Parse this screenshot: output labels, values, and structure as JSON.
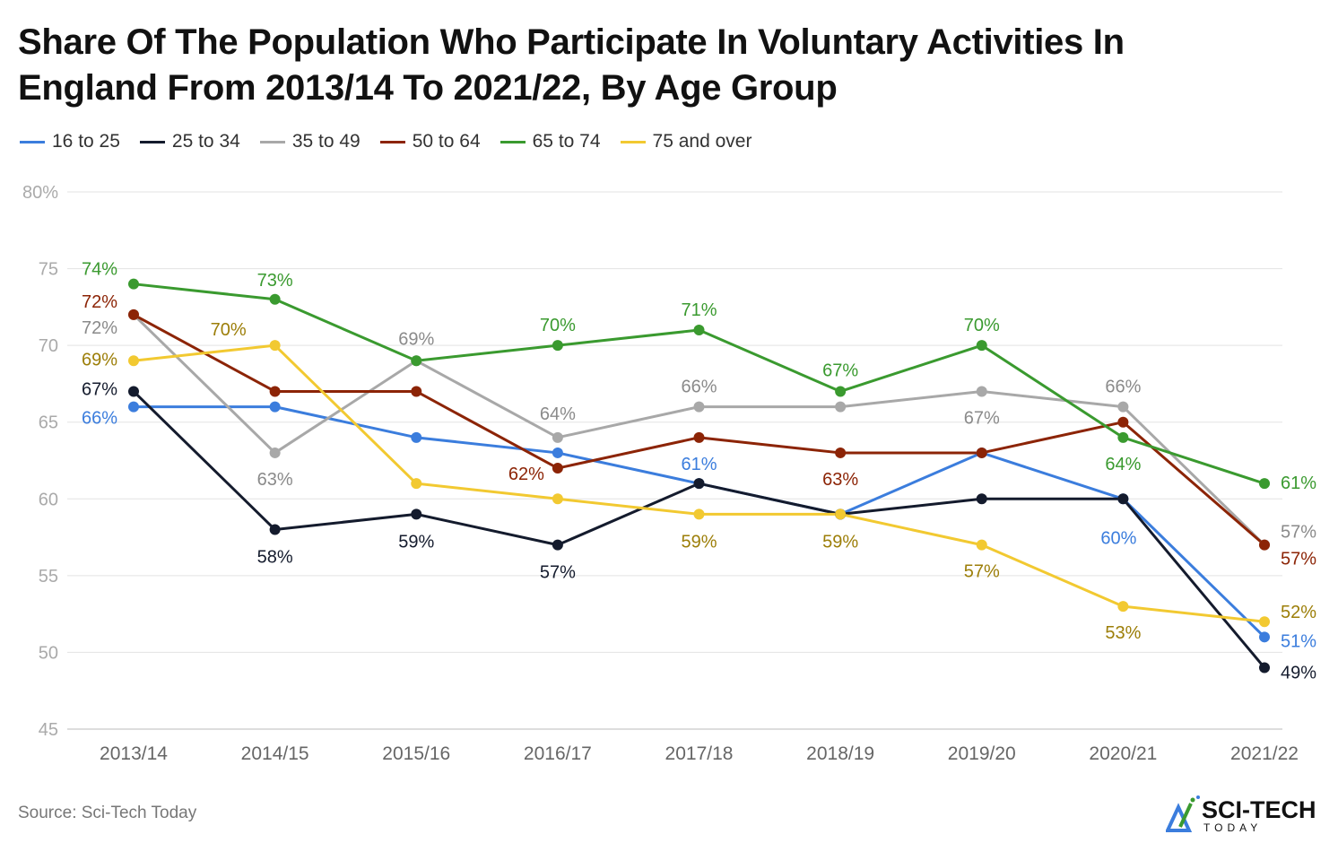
{
  "chart_data": {
    "type": "line",
    "title": "Share Of The Population Who Participate In Voluntary Activities In England From 2013/14 To 2021/22, By Age Group",
    "xlabel": "",
    "ylabel": "",
    "ylim": [
      45,
      80
    ],
    "y_ticks": [
      "45",
      "50",
      "55",
      "60",
      "65",
      "70",
      "75",
      "80%"
    ],
    "y_tick_values": [
      45,
      50,
      55,
      60,
      65,
      70,
      75,
      80
    ],
    "grid": true,
    "legend_position": "top-left",
    "categories": [
      "2013/14",
      "2014/15",
      "2015/16",
      "2016/17",
      "2017/18",
      "2018/19",
      "2019/20",
      "2020/21",
      "2021/22"
    ],
    "series": [
      {
        "name": "16 to 25",
        "color": "#3b7ddd",
        "label_color": "#3b7ddd",
        "values": [
          66,
          66,
          64,
          63,
          61,
          59,
          63,
          60,
          51
        ],
        "labels": [
          "66%",
          null,
          null,
          null,
          "61%",
          null,
          null,
          "60%",
          "51%"
        ]
      },
      {
        "name": "25 to 34",
        "color": "#141b2d",
        "label_color": "#141b2d",
        "values": [
          67,
          58,
          59,
          57,
          61,
          59,
          60,
          60,
          49
        ],
        "labels": [
          "67%",
          "58%",
          "59%",
          "57%",
          null,
          null,
          null,
          null,
          "49%"
        ]
      },
      {
        "name": "35 to 49",
        "color": "#a8a8a8",
        "label_color": "#8a8a8a",
        "values": [
          72,
          63,
          69,
          64,
          66,
          66,
          67,
          66,
          57
        ],
        "labels": [
          "72%",
          "63%",
          "69%",
          "64%",
          "66%",
          null,
          "67%",
          "66%",
          "57%"
        ]
      },
      {
        "name": "50 to 64",
        "color": "#8c2406",
        "label_color": "#8c2406",
        "values": [
          72,
          67,
          67,
          62,
          64,
          63,
          63,
          65,
          57
        ],
        "labels": [
          "72%",
          null,
          null,
          "62%",
          null,
          "63%",
          null,
          null,
          "57%"
        ]
      },
      {
        "name": "65 to 74",
        "color": "#3a9a2f",
        "label_color": "#3a9a2f",
        "values": [
          74,
          73,
          69,
          70,
          71,
          67,
          70,
          64,
          61
        ],
        "labels": [
          "74%",
          "73%",
          null,
          "70%",
          "71%",
          "67%",
          "70%",
          "64%",
          "61%"
        ]
      },
      {
        "name": "75 and over",
        "color": "#f2c931",
        "label_color": "#9c7e08",
        "values": [
          69,
          70,
          61,
          60,
          59,
          59,
          57,
          53,
          52
        ],
        "labels": [
          "69%",
          "70%",
          null,
          null,
          "59%",
          "59%",
          "57%",
          "53%",
          "52%"
        ]
      }
    ]
  },
  "footer": {
    "source": "Source: Sci-Tech Today",
    "logo_text": "SCI-TECH",
    "logo_subtext": "TODAY"
  }
}
